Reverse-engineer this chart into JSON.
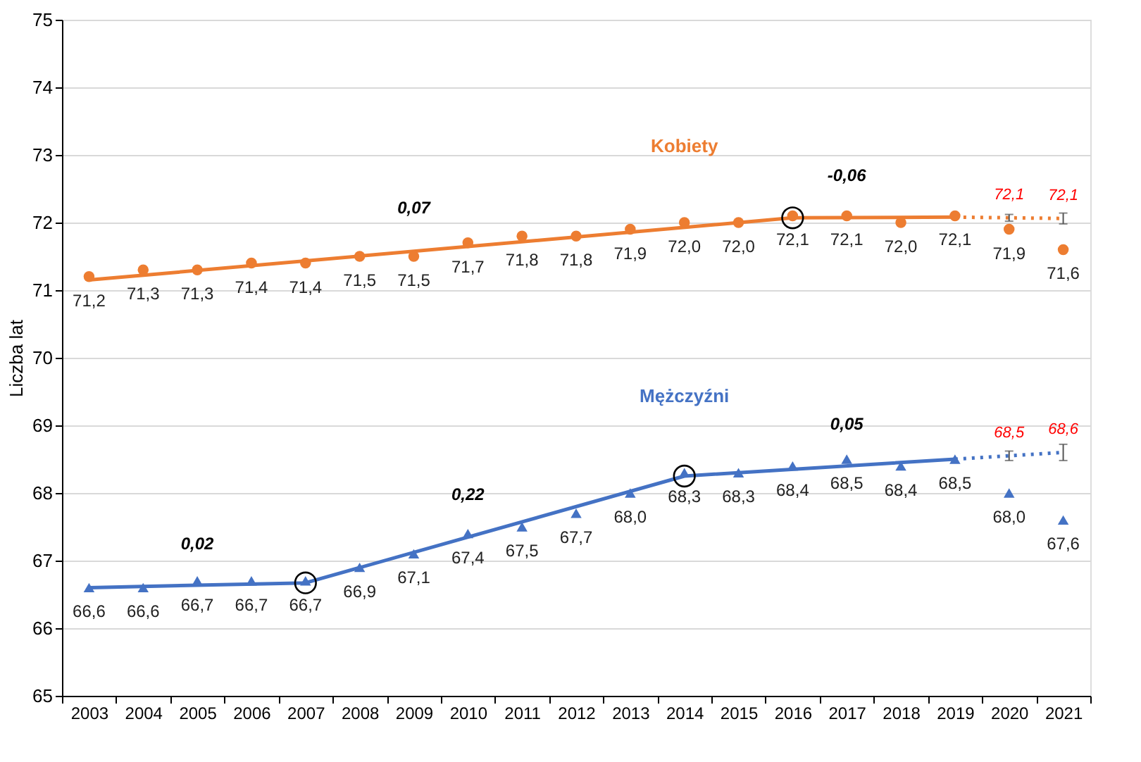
{
  "chart_data": {
    "type": "scatter",
    "ylabel": "Liczba lat",
    "categories": [
      "2003",
      "2004",
      "2005",
      "2006",
      "2007",
      "2008",
      "2009",
      "2010",
      "2011",
      "2012",
      "2013",
      "2014",
      "2015",
      "2016",
      "2017",
      "2018",
      "2019",
      "2020",
      "2021"
    ],
    "ylim": [
      65,
      75
    ],
    "yticks": [
      65,
      66,
      67,
      68,
      69,
      70,
      71,
      72,
      73,
      74,
      75
    ],
    "grid": "y",
    "series": [
      {
        "type": "line",
        "color": "#ed7d31",
        "line_style": "solid",
        "values": [
          71.15,
          null,
          null,
          null,
          null,
          null,
          null,
          null,
          null,
          null,
          null,
          null,
          null,
          72.07,
          null,
          null,
          72.08,
          null,
          null
        ]
      },
      {
        "type": "line",
        "color": "#ed7d31",
        "line_style": "dotted",
        "values": [
          null,
          null,
          null,
          null,
          null,
          null,
          null,
          null,
          null,
          null,
          null,
          null,
          null,
          null,
          null,
          null,
          72.08,
          72.07,
          72.06
        ],
        "errors": [
          null,
          null,
          null,
          null,
          null,
          null,
          null,
          null,
          null,
          null,
          null,
          null,
          null,
          null,
          null,
          null,
          null,
          0.05,
          0.08
        ],
        "value_labels": [
          null,
          null,
          null,
          null,
          null,
          null,
          null,
          null,
          null,
          null,
          null,
          null,
          null,
          null,
          null,
          null,
          null,
          "72,1",
          "72,1"
        ]
      },
      {
        "type": "scatter",
        "name": "Kobiety",
        "color": "#ed7d31",
        "marker": "circle",
        "values": [
          71.2,
          71.3,
          71.3,
          71.4,
          71.4,
          71.5,
          71.5,
          71.7,
          71.8,
          71.8,
          71.9,
          72.0,
          72.0,
          72.1,
          72.1,
          72.0,
          72.1,
          71.9,
          71.6
        ],
        "value_labels": [
          "71,2",
          "71,3",
          "71,3",
          "71,4",
          "71,4",
          "71,5",
          "71,5",
          "71,7",
          "71,8",
          "71,8",
          "71,9",
          "72,0",
          "72,0",
          "72,1",
          "72,1",
          "72,0",
          "72,1",
          "71,9",
          "71,6"
        ]
      },
      {
        "type": "line",
        "color": "#4472c4",
        "line_style": "solid",
        "values": [
          66.6,
          null,
          null,
          null,
          66.67,
          null,
          null,
          null,
          null,
          null,
          null,
          68.25,
          null,
          null,
          null,
          null,
          68.5,
          null,
          null
        ]
      },
      {
        "type": "line",
        "color": "#4472c4",
        "line_style": "dotted",
        "values": [
          null,
          null,
          null,
          null,
          null,
          null,
          null,
          null,
          null,
          null,
          null,
          null,
          null,
          null,
          null,
          null,
          68.5,
          68.55,
          68.6
        ],
        "errors": [
          null,
          null,
          null,
          null,
          null,
          null,
          null,
          null,
          null,
          null,
          null,
          null,
          null,
          null,
          null,
          null,
          null,
          0.07,
          0.12
        ],
        "value_labels": [
          null,
          null,
          null,
          null,
          null,
          null,
          null,
          null,
          null,
          null,
          null,
          null,
          null,
          null,
          null,
          null,
          null,
          "68,5",
          "68,6"
        ]
      },
      {
        "type": "scatter",
        "name": "Mężczyźni",
        "color": "#4472c4",
        "marker": "triangle",
        "values": [
          66.6,
          66.6,
          66.7,
          66.7,
          66.7,
          66.9,
          67.1,
          67.4,
          67.5,
          67.7,
          68.0,
          68.3,
          68.3,
          68.4,
          68.5,
          68.4,
          68.5,
          68.0,
          67.6
        ],
        "value_labels": [
          "66,6",
          "66,6",
          "66,7",
          "66,7",
          "66,7",
          "66,9",
          "67,1",
          "67,4",
          "67,5",
          "67,7",
          "68,0",
          "68,3",
          "68,3",
          "68,4",
          "68,5",
          "68,4",
          "68,5",
          "68,0",
          "67,6"
        ]
      },
      {
        "type": "scatter",
        "color": "#000000",
        "marker": "circle",
        "values": [
          null,
          null,
          null,
          null,
          66.67,
          null,
          null,
          null,
          null,
          null,
          null,
          68.25,
          null,
          72.07,
          null,
          null,
          null,
          null,
          null
        ]
      }
    ],
    "annotations": [
      {
        "text": "0,07",
        "x": "2009",
        "y": 71.59
      },
      {
        "text": "-0,06",
        "x": "2017",
        "y": 72.07
      },
      {
        "text": "0,02",
        "x": "2005",
        "y": 66.63
      },
      {
        "text": "0,22",
        "x": "2010",
        "y": 67.35
      },
      {
        "text": "0,05",
        "x": "2017",
        "y": 68.4
      }
    ]
  }
}
